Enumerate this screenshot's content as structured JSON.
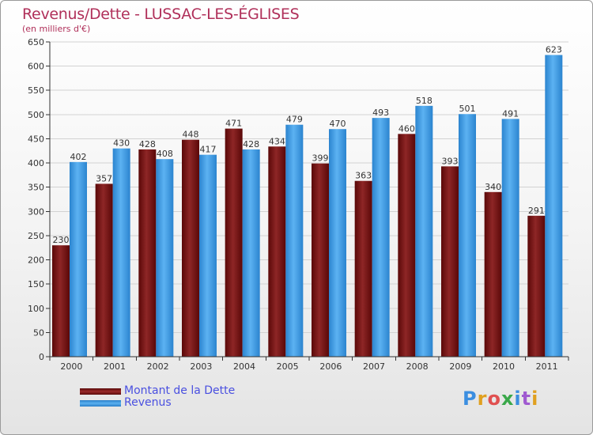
{
  "title": "Revenus/Dette - LUSSAC-LES-ÉGLISES",
  "subtitle": "(en milliers d'€)",
  "legend": {
    "items": [
      {
        "label": "Montant de la Dette",
        "color": "#7a1414"
      },
      {
        "label": "Revenus",
        "color": "#3a98e0"
      }
    ],
    "position": "bottom-left"
  },
  "logo": {
    "text": "Proxiti",
    "colors": [
      "#3b8ee0",
      "#e0a020",
      "#e05050",
      "#3aa84a",
      "#3b8ee0",
      "#a05ad0",
      "#e0a020"
    ]
  },
  "chart_data": {
    "type": "bar",
    "categories": [
      "2000",
      "2001",
      "2002",
      "2003",
      "2004",
      "2005",
      "2006",
      "2007",
      "2008",
      "2009",
      "2010",
      "2011"
    ],
    "series": [
      {
        "name": "Montant de la Dette",
        "color": "#7a1414",
        "values": [
          230,
          357,
          428,
          448,
          471,
          434,
          399,
          363,
          460,
          393,
          340,
          291
        ]
      },
      {
        "name": "Revenus",
        "color": "#3a98e0",
        "values": [
          402,
          430,
          408,
          417,
          428,
          479,
          470,
          493,
          518,
          501,
          491,
          623
        ]
      }
    ],
    "ylim": [
      0,
      650
    ],
    "yticks": [
      0,
      50,
      100,
      150,
      200,
      250,
      300,
      350,
      400,
      450,
      500,
      550,
      600,
      650
    ],
    "grid": true,
    "title": "Revenus/Dette - LUSSAC-LES-ÉGLISES",
    "ylabel": "(en milliers d'€)"
  }
}
